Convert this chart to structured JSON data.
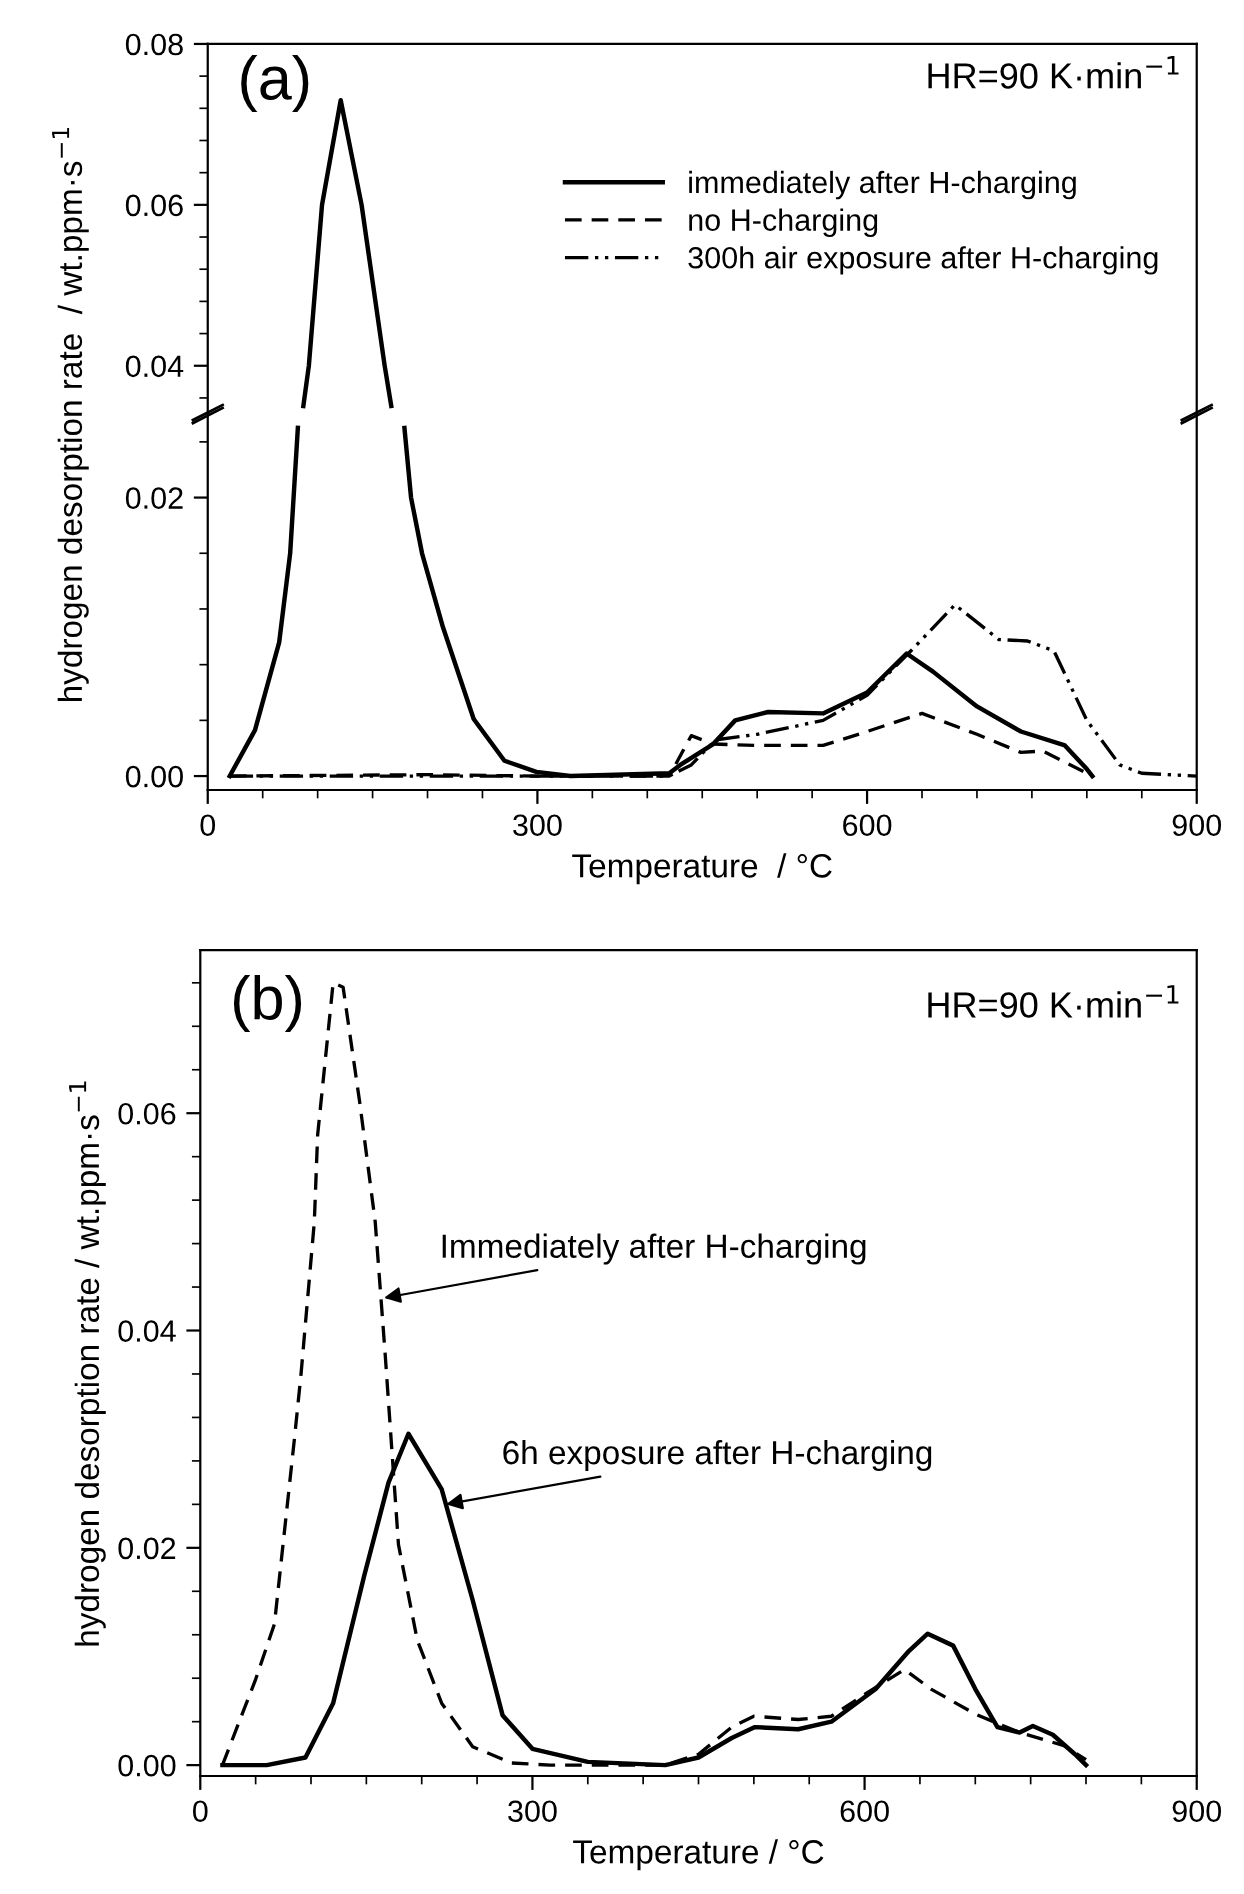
{
  "chart_data": [
    {
      "type": "line",
      "xlim": [
        0,
        900
      ],
      "xticks": [
        0,
        300,
        600,
        900
      ],
      "ylim": [
        0.034,
        0.08
      ],
      "yticks": [
        {
          "value": 0.04,
          "label": "0.04"
        },
        {
          "value": 0.06,
          "label": "0.06"
        },
        {
          "value": 0.08,
          "label": "0.08"
        }
      ],
      "tick_labels": "y",
      "annotations": [
        "(a)",
        "HR=90 K·min$^{−1}$"
      ],
      "series": [
        {
          "color": "#000000",
          "line_style": "solid",
          "x": [
            87,
            92,
            104,
            121,
            140,
            161,
            167
          ],
          "values": [
            0.035,
            0.04,
            0.06,
            0.073,
            0.06,
            0.04,
            0.035
          ]
        }
      ]
    },
    {
      "type": "line",
      "xlim": [
        0,
        900
      ],
      "xticks": [
        0,
        300,
        600,
        900
      ],
      "ylim": [
        -0.001,
        0.026
      ],
      "yticks": [
        {
          "value": 0,
          "label": "0.00"
        },
        {
          "value": 0.02,
          "label": "0.02"
        }
      ],
      "xlabel": "Temperature  / °C",
      "ylabel": "hydrogen desorption rate  / wt.ppm·s$^{−1}$",
      "legend": "top right",
      "series": [
        {
          "name": "immediately after H-charging",
          "color": "#000000",
          "line_style": "solid",
          "x": [
            20,
            43,
            65,
            75,
            82,
            121,
            179,
            185,
            195,
            214,
            242,
            270,
            299,
            330,
            420,
            430,
            460,
            480,
            510,
            560,
            600,
            636,
            660,
            700,
            740,
            780,
            800,
            805
          ],
          "values": [
            0,
            0.0033,
            0.0096,
            0.016,
            0.025,
            null,
            0.025,
            0.02,
            0.016,
            0.0107,
            0.0041,
            0.0011,
            0.0003,
            0,
            0.0002,
            0.0008,
            0.0023,
            0.004,
            0.0046,
            0.0045,
            0.006,
            0.0088,
            0.0075,
            0.005,
            0.0032,
            0.0022,
            0.0005,
            0
          ]
        },
        {
          "name": "no H-charging",
          "color": "#000000",
          "line_style": "dashed",
          "x": [
            20,
            200,
            300,
            420,
            440,
            460,
            500,
            560,
            600,
            650,
            700,
            740,
            760,
            800
          ],
          "values": [
            0,
            0.0001,
            0,
            0,
            0.0029,
            0.0023,
            0.0022,
            0.0022,
            0.0032,
            0.0045,
            0.003,
            0.0017,
            0.0018,
            0.0002
          ]
        },
        {
          "name": "300h air exposure after H-charging",
          "color": "#000000",
          "line_style": "dashdotdot",
          "x": [
            20,
            300,
            420,
            440,
            462,
            500,
            560,
            600,
            640,
            680,
            720,
            746,
            770,
            800,
            830,
            850,
            900
          ],
          "values": [
            0,
            0,
            0,
            0.0008,
            0.0026,
            0.003,
            0.004,
            0.0058,
            0.009,
            0.0123,
            0.0098,
            0.0097,
            0.009,
            0.004,
            0.0008,
            0.0002,
            0
          ]
        }
      ]
    },
    {
      "type": "line",
      "xlim": [
        0,
        900
      ],
      "xticks": [
        0,
        300,
        600,
        900
      ],
      "ylim": [
        -0.001,
        0.075
      ],
      "yticks": [
        {
          "value": 0,
          "label": "0.00"
        },
        {
          "value": 0.02,
          "label": "0.02"
        },
        {
          "value": 0.04,
          "label": "0.04"
        },
        {
          "value": 0.06,
          "label": "0.06"
        }
      ],
      "xlabel": "Temperature / °C",
      "ylabel": "hydrogen desorption rate / wt.ppm·s$^{−1}$",
      "annotations": [
        "(b)",
        "HR=90 K·min$^{−1}$",
        {
          "text": "Immediately after H-charging",
          "x": 166,
          "y": 0.043
        },
        {
          "text": "6h exposure after H-charging",
          "x": 222,
          "y": 0.024
        }
      ],
      "series": [
        {
          "color": "#000000",
          "line_style": "dashed",
          "x": [
            20,
            50,
            67,
            85,
            91,
            103,
            106,
            120,
            129,
            144,
            158,
            167,
            179,
            196,
            218,
            246,
            281,
            316,
            420,
            450,
            480,
            500,
            540,
            570,
            600,
            636,
            660,
            700,
            740,
            780,
            800
          ],
          "values": [
            0,
            0.0079,
            0.013,
            0.03,
            0.036,
            0.05,
            0.058,
            0.072,
            0.0716,
            0.061,
            0.05,
            0.0378,
            0.0203,
            0.0115,
            0.0057,
            0.0017,
            0.0002,
            0,
            0,
            0.001,
            0.0035,
            0.0045,
            0.0042,
            0.0045,
            0.0065,
            0.0088,
            0.007,
            0.0047,
            0.003,
            0.0018,
            0.0005
          ]
        },
        {
          "color": "#000000",
          "line_style": "solid",
          "x": [
            20,
            60,
            95,
            120,
            148,
            170,
            188,
            218,
            246,
            273,
            300,
            350,
            420,
            450,
            480,
            501,
            540,
            570,
            610,
            640,
            657,
            680,
            700,
            720,
            740,
            752,
            770,
            790,
            800
          ],
          "values": [
            0,
            0,
            0.0007,
            0.0057,
            0.0174,
            0.026,
            0.0305,
            0.0254,
            0.0152,
            0.0046,
            0.0015,
            0.0003,
            0,
            0.0007,
            0.0025,
            0.0035,
            0.0033,
            0.004,
            0.007,
            0.0105,
            0.0121,
            0.011,
            0.007,
            0.0035,
            0.003,
            0.0036,
            0.0028,
            0.001,
            0
          ]
        }
      ]
    }
  ]
}
